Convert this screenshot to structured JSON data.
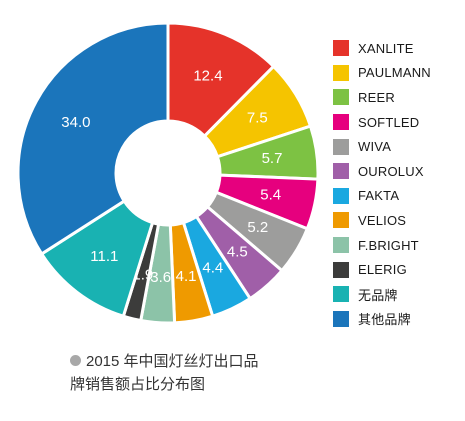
{
  "chart_data": {
    "type": "pie",
    "donut": true,
    "categories": [
      "XANLITE",
      "PAULMANN",
      "REER",
      "SOFTLED",
      "WIVA",
      "OUROLUX",
      "FAKTA",
      "VELIOS",
      "F.BRIGHT",
      "ELERIG",
      "无品牌",
      "其他品牌"
    ],
    "values": [
      12.4,
      7.5,
      5.7,
      5.4,
      5.2,
      4.5,
      4.4,
      4.1,
      3.6,
      1.9,
      11.1,
      34.0
    ],
    "labels": [
      "12.4",
      "7.5",
      "5.7",
      "5.4",
      "5.2",
      "4.5",
      "4.4",
      "4.1",
      "3.6",
      "1.9",
      "11.1",
      "34.0"
    ],
    "colors": [
      "#e5332a",
      "#f5c400",
      "#7dc243",
      "#e6007e",
      "#9d9d9c",
      "#a05fa8",
      "#1aa8e0",
      "#ef9a00",
      "#8cc3a8",
      "#3c3c3b",
      "#19b2b2",
      "#1b75bb"
    ],
    "legend_position": "right",
    "title": "2015 年中国灯丝灯出口品牌销售额占比分布图"
  },
  "caption": {
    "line1": "2015 年中国灯丝灯出口品",
    "line2": "牌销售额占比分布图"
  }
}
